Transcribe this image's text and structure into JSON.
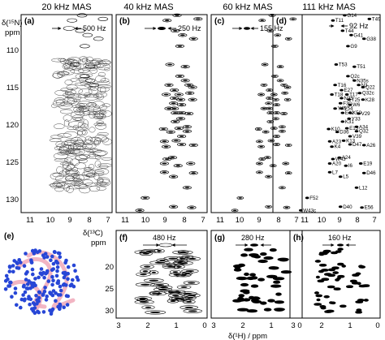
{
  "figure": {
    "column_titles": [
      "20 kHz MAS",
      "40 kHz MAS",
      "60 kHz MAS",
      "111 kHz MAS"
    ],
    "row1_axis": {
      "label_line1": "δ(¹⁵N)",
      "label_line2": "ppm",
      "y_ticks": [
        "110",
        "115",
        "120",
        "125",
        "130"
      ],
      "x_ticks": [
        "11",
        "10",
        "9",
        "8",
        "7"
      ]
    },
    "row2_axis": {
      "label_line1": "δ(¹³C)",
      "label_line2": "ppm",
      "y_ticks": [
        "20",
        "25",
        "30"
      ],
      "x_ticks": [
        "3",
        "2",
        "1",
        "0"
      ]
    },
    "x_axis_label": "δ(¹H) / ppm",
    "panels_top": [
      {
        "label": "(a)",
        "linewidth": "500 Hz"
      },
      {
        "label": "(b)",
        "linewidth": "250 Hz"
      },
      {
        "label": "(c)",
        "linewidth": "155 Hz"
      },
      {
        "label": "(d)",
        "linewidth": "92 Hz"
      }
    ],
    "panels_bottom": [
      {
        "label": "(e)"
      },
      {
        "label": "(f)",
        "linewidth": "480 Hz"
      },
      {
        "label": "(g)",
        "linewidth": "280 Hz"
      },
      {
        "label": "(h)",
        "linewidth": "160 Hz"
      }
    ]
  },
  "chart_data": [
    {
      "type": "scatter",
      "panel": "(d)",
      "title": "111 kHz MAS",
      "xlabel": "δ(¹H) / ppm",
      "ylabel": "δ(¹⁵N) ppm",
      "xlim": [
        11.5,
        6.5
      ],
      "ylim": [
        106,
        133
      ],
      "points": [
        {
          "label": "T11",
          "x": 8.7,
          "y": 106.8
        },
        {
          "label": "G14",
          "x": 8.15,
          "y": 106.1
        },
        {
          "label": "T49",
          "x": 7.0,
          "y": 106.6
        },
        {
          "label": "T44",
          "x": 8.25,
          "y": 108.2
        },
        {
          "label": "G41",
          "x": 7.85,
          "y": 108.8
        },
        {
          "label": "G38",
          "x": 7.25,
          "y": 109.3
        },
        {
          "label": "G9",
          "x": 8.0,
          "y": 110.3
        },
        {
          "label": "T53",
          "x": 8.55,
          "y": 112.8
        },
        {
          "label": "T51",
          "x": 7.7,
          "y": 113.1
        },
        {
          "label": "Q2c",
          "x": 8.0,
          "y": 114.4
        },
        {
          "label": "N35s",
          "x": 7.7,
          "y": 115.0
        },
        {
          "label": "N3",
          "x": 7.5,
          "y": 115.6
        },
        {
          "label": "T16",
          "x": 8.6,
          "y": 115.6
        },
        {
          "label": "Q22",
          "x": 7.3,
          "y": 115.9
        },
        {
          "label": "E27",
          "x": 8.3,
          "y": 116.3
        },
        {
          "label": "T18",
          "x": 8.75,
          "y": 116.9
        },
        {
          "label": "T17",
          "x": 8.05,
          "y": 116.9
        },
        {
          "label": "Q32c",
          "x": 7.45,
          "y": 116.7
        },
        {
          "label": "N35",
          "x": 8.3,
          "y": 117.4
        },
        {
          "label": "T25",
          "x": 7.95,
          "y": 117.6
        },
        {
          "label": "K28",
          "x": 7.3,
          "y": 117.6
        },
        {
          "label": "F30",
          "x": 8.35,
          "y": 118.1
        },
        {
          "label": "W6",
          "x": 7.9,
          "y": 118.3
        },
        {
          "label": "V54",
          "x": 8.3,
          "y": 118.8
        },
        {
          "label": "Y45",
          "x": 8.6,
          "y": 118.8
        },
        {
          "label": "E42",
          "x": 8.25,
          "y": 119.4
        },
        {
          "label": "K50",
          "x": 7.9,
          "y": 119.4
        },
        {
          "label": "V29",
          "x": 7.5,
          "y": 119.5
        },
        {
          "label": "Y33",
          "x": 7.95,
          "y": 120.2
        },
        {
          "label": "K31",
          "x": 8.25,
          "y": 120.6
        },
        {
          "label": "K10",
          "x": 8.9,
          "y": 121.6
        },
        {
          "label": "E15",
          "x": 8.05,
          "y": 121.5
        },
        {
          "label": "A34",
          "x": 7.6,
          "y": 121.3
        },
        {
          "label": "D36",
          "x": 8.5,
          "y": 122.0
        },
        {
          "label": "Q32",
          "x": 7.6,
          "y": 121.9
        },
        {
          "label": "V39",
          "x": 7.9,
          "y": 122.6
        },
        {
          "label": "K13",
          "x": 8.2,
          "y": 123.2
        },
        {
          "label": "A23",
          "x": 8.85,
          "y": 123.3
        },
        {
          "label": "D47",
          "x": 7.9,
          "y": 123.7
        },
        {
          "label": "A26",
          "x": 7.25,
          "y": 123.8
        },
        {
          "label": "K4",
          "x": 8.75,
          "y": 124.0
        },
        {
          "label": "W43",
          "x": 8.7,
          "y": 125.7
        },
        {
          "label": "A24",
          "x": 8.4,
          "y": 125.5
        },
        {
          "label": "A20",
          "x": 8.85,
          "y": 126.3
        },
        {
          "label": "I6",
          "x": 8.1,
          "y": 126.6
        },
        {
          "label": "E19",
          "x": 7.4,
          "y": 126.3
        },
        {
          "label": "L7",
          "x": 8.85,
          "y": 127.5
        },
        {
          "label": "D46",
          "x": 7.25,
          "y": 127.6
        },
        {
          "label": "L5",
          "x": 8.35,
          "y": 128.1
        },
        {
          "label": "L12",
          "x": 7.6,
          "y": 129.6
        },
        {
          "label": "F52",
          "x": 9.9,
          "y": 131.0
        },
        {
          "label": "D40",
          "x": 8.35,
          "y": 132.2
        },
        {
          "label": "E56",
          "x": 7.35,
          "y": 132.3
        },
        {
          "label": "W43c",
          "x": 10.2,
          "y": 132.7
        }
      ]
    }
  ]
}
